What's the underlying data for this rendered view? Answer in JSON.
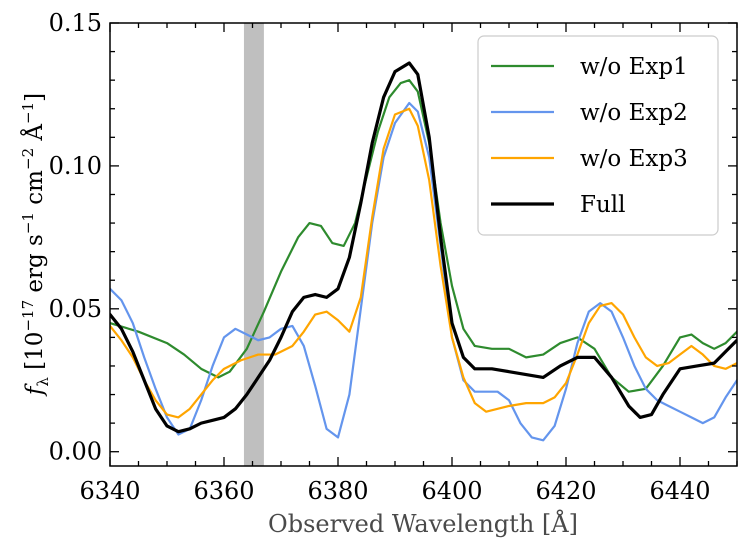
{
  "chart_data": {
    "type": "line",
    "title": "",
    "xlabel": "Observed Wavelength [Å]",
    "ylabel": {
      "base": "f",
      "sub": "λ",
      "open": " [",
      "num": "10",
      "exp_num": "−17",
      "erg": " erg s",
      "exp_s": "−1",
      "cm": " cm",
      "exp_cm": "−2",
      "ang": " Å",
      "exp_ang": "−1",
      "close": "]"
    },
    "xlim": [
      6340,
      6450
    ],
    "ylim": [
      -0.005,
      0.15
    ],
    "xticks": [
      6340,
      6360,
      6380,
      6400,
      6420,
      6440
    ],
    "xtick_labels": [
      "6340",
      "6360",
      "6380",
      "6400",
      "6420",
      "6440"
    ],
    "yticks": [
      0.0,
      0.05,
      0.1,
      0.15
    ],
    "ytick_labels": [
      "0.00",
      "0.05",
      "0.10",
      "0.15"
    ],
    "shaded_region": [
      6363.5,
      6367.0
    ],
    "shaded_color": "#bfbfbf",
    "legend_position": "top-right",
    "series": [
      {
        "name": "w/o Exp1",
        "color": "#2e8b2e",
        "x": [
          6340,
          6345,
          6350,
          6353,
          6356,
          6359,
          6361,
          6364,
          6367,
          6370,
          6373,
          6375,
          6377,
          6379,
          6381,
          6383,
          6385,
          6387,
          6389,
          6391,
          6392.5,
          6394,
          6396,
          6398,
          6400,
          6402,
          6404,
          6407,
          6410,
          6413,
          6416,
          6419,
          6422,
          6425,
          6428,
          6431,
          6434,
          6437,
          6440,
          6442,
          6444,
          6446,
          6448,
          6450
        ],
        "y": [
          0.045,
          0.042,
          0.038,
          0.034,
          0.029,
          0.026,
          0.028,
          0.036,
          0.049,
          0.063,
          0.075,
          0.08,
          0.079,
          0.073,
          0.072,
          0.08,
          0.096,
          0.112,
          0.124,
          0.129,
          0.13,
          0.126,
          0.108,
          0.08,
          0.058,
          0.043,
          0.037,
          0.036,
          0.036,
          0.033,
          0.034,
          0.038,
          0.04,
          0.036,
          0.026,
          0.021,
          0.022,
          0.03,
          0.04,
          0.041,
          0.038,
          0.036,
          0.038,
          0.042
        ]
      },
      {
        "name": "w/o Exp2",
        "color": "#6495ed",
        "x": [
          6340,
          6342,
          6344,
          6346,
          6348,
          6350,
          6352,
          6354,
          6356,
          6358,
          6360,
          6362,
          6364,
          6366,
          6368,
          6370,
          6372,
          6374,
          6376,
          6378,
          6380,
          6382,
          6384,
          6386,
          6388,
          6390,
          6392.5,
          6394,
          6396,
          6398,
          6400,
          6402,
          6404,
          6406,
          6408,
          6410,
          6412,
          6414,
          6416,
          6418,
          6420,
          6422,
          6424,
          6426,
          6428,
          6430,
          6432,
          6434,
          6436,
          6438,
          6440,
          6442,
          6444,
          6446,
          6448,
          6450
        ],
        "y": [
          0.057,
          0.053,
          0.045,
          0.033,
          0.022,
          0.012,
          0.006,
          0.008,
          0.018,
          0.03,
          0.04,
          0.043,
          0.041,
          0.039,
          0.04,
          0.043,
          0.044,
          0.037,
          0.023,
          0.008,
          0.005,
          0.02,
          0.05,
          0.08,
          0.103,
          0.115,
          0.122,
          0.119,
          0.103,
          0.072,
          0.04,
          0.025,
          0.021,
          0.021,
          0.021,
          0.018,
          0.01,
          0.005,
          0.004,
          0.009,
          0.022,
          0.038,
          0.049,
          0.052,
          0.049,
          0.04,
          0.03,
          0.022,
          0.018,
          0.016,
          0.014,
          0.012,
          0.01,
          0.012,
          0.019,
          0.025
        ]
      },
      {
        "name": "w/o Exp3",
        "color": "#ffa500",
        "x": [
          6340,
          6342,
          6344,
          6346,
          6348,
          6350,
          6352,
          6354,
          6356,
          6358,
          6360,
          6363,
          6366,
          6369,
          6372,
          6374,
          6376,
          6378,
          6380,
          6382,
          6384,
          6386,
          6388,
          6390,
          6392.5,
          6394,
          6396,
          6398,
          6400,
          6402,
          6404,
          6406,
          6408,
          6410,
          6413,
          6416,
          6418,
          6420,
          6422,
          6424,
          6426,
          6428,
          6430,
          6432,
          6434,
          6436,
          6438,
          6440,
          6442,
          6444,
          6446,
          6448,
          6450
        ],
        "y": [
          0.044,
          0.039,
          0.033,
          0.025,
          0.018,
          0.013,
          0.012,
          0.015,
          0.02,
          0.025,
          0.029,
          0.032,
          0.034,
          0.034,
          0.037,
          0.042,
          0.048,
          0.049,
          0.046,
          0.042,
          0.054,
          0.082,
          0.106,
          0.118,
          0.12,
          0.114,
          0.095,
          0.065,
          0.04,
          0.026,
          0.017,
          0.014,
          0.015,
          0.016,
          0.017,
          0.017,
          0.019,
          0.024,
          0.034,
          0.045,
          0.051,
          0.052,
          0.048,
          0.04,
          0.033,
          0.03,
          0.031,
          0.034,
          0.037,
          0.034,
          0.03,
          0.029,
          0.031
        ]
      },
      {
        "name": "Full",
        "color": "#000000",
        "x": [
          6340,
          6342,
          6344,
          6346,
          6348,
          6350,
          6352,
          6354,
          6356,
          6358,
          6360,
          6362,
          6364,
          6366,
          6368,
          6370,
          6372,
          6374,
          6376,
          6378,
          6380,
          6382,
          6384,
          6386,
          6388,
          6390,
          6392.5,
          6394,
          6396,
          6398,
          6400,
          6402,
          6404,
          6407,
          6410,
          6413,
          6416,
          6419,
          6422,
          6425,
          6428,
          6431,
          6433,
          6435,
          6437,
          6440,
          6443,
          6446,
          6448,
          6450
        ],
        "y": [
          0.048,
          0.043,
          0.035,
          0.025,
          0.015,
          0.009,
          0.007,
          0.008,
          0.01,
          0.011,
          0.012,
          0.015,
          0.02,
          0.026,
          0.032,
          0.04,
          0.049,
          0.054,
          0.055,
          0.054,
          0.057,
          0.068,
          0.087,
          0.108,
          0.124,
          0.133,
          0.136,
          0.132,
          0.11,
          0.075,
          0.045,
          0.033,
          0.029,
          0.029,
          0.028,
          0.027,
          0.026,
          0.03,
          0.033,
          0.033,
          0.026,
          0.016,
          0.012,
          0.013,
          0.02,
          0.029,
          0.03,
          0.031,
          0.035,
          0.039
        ]
      }
    ]
  }
}
